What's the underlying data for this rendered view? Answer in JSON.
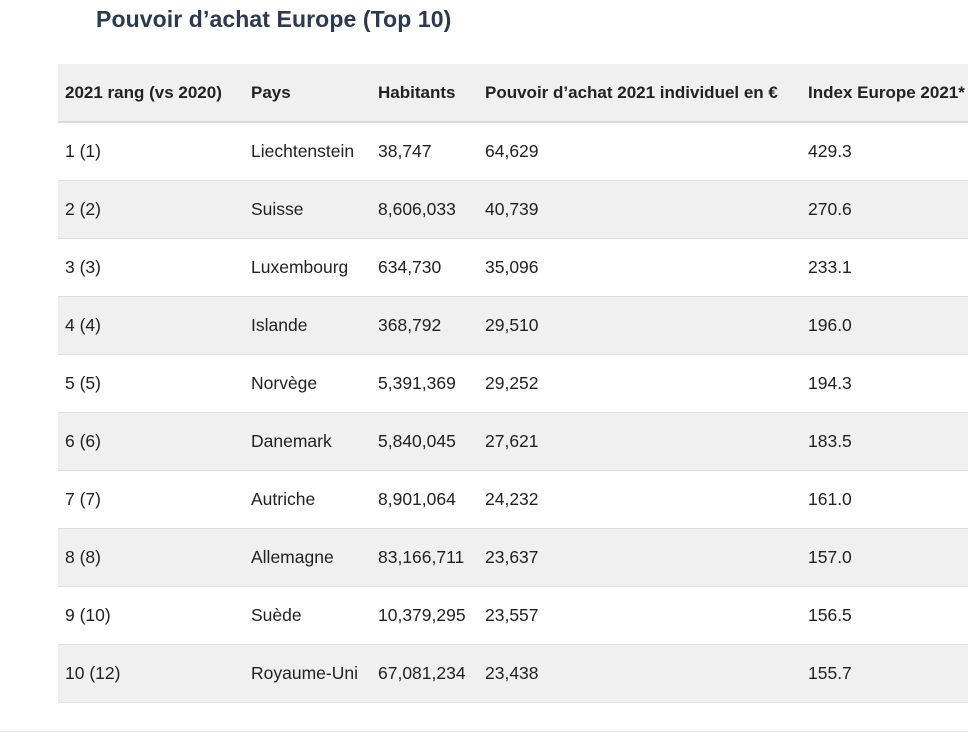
{
  "title": "Pouvoir d’achat Europe (Top 10)",
  "table": {
    "headers": [
      "2021 rang (vs 2020)",
      "Pays",
      "Habitants",
      "Pouvoir d’achat 2021 individuel en €",
      "Index Europe 2021*"
    ],
    "rows": [
      [
        "1 (1)",
        "Liechtenstein",
        "38,747",
        "64,629",
        "429.3"
      ],
      [
        "2 (2)",
        "Suisse",
        "8,606,033",
        "40,739",
        "270.6"
      ],
      [
        "3 (3)",
        "Luxembourg",
        "634,730",
        "35,096",
        "233.1"
      ],
      [
        "4 (4)",
        "Islande",
        "368,792",
        "29,510",
        "196.0"
      ],
      [
        "5 (5)",
        "Norvège",
        "5,391,369",
        "29,252",
        "194.3"
      ],
      [
        "6 (6)",
        "Danemark",
        "5,840,045",
        "27,621",
        "183.5"
      ],
      [
        "7 (7)",
        "Autriche",
        "8,901,064",
        "24,232",
        "161.0"
      ],
      [
        "8 (8)",
        "Allemagne",
        "83,166,711",
        "23,637",
        "157.0"
      ],
      [
        "9 (10)",
        "Suède",
        "10,379,295",
        "23,557",
        "156.5"
      ],
      [
        "10 (12)",
        "Royaume-Uni",
        "67,081,234",
        "23,438",
        "155.7"
      ]
    ]
  }
}
